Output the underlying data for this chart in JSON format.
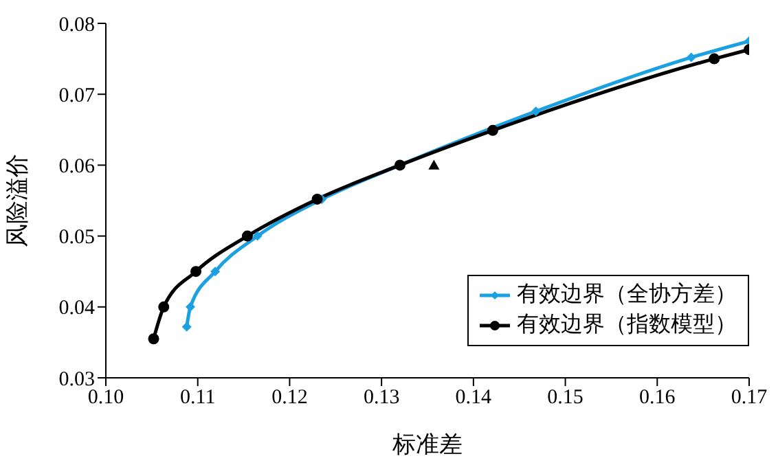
{
  "chart_data": {
    "type": "line",
    "xlabel": "标准差",
    "ylabel": "风险溢价",
    "xlim": [
      0.1,
      0.17
    ],
    "xticks": [
      {
        "value": 0.1,
        "label": "0.10"
      },
      0.11,
      0.12,
      0.13,
      0.14,
      0.15,
      0.16,
      0.17
    ],
    "ylim": [
      0.03,
      0.08
    ],
    "yticks": [
      0.03,
      0.04,
      0.05,
      0.06,
      0.07,
      0.08
    ],
    "grid": false,
    "legend": "bottom right",
    "series": [
      {
        "name": "有效边界（全协方差）",
        "color": "#1ba1e2",
        "marker": "diamond",
        "x": [
          0.1088,
          0.1092,
          0.1119,
          0.1165,
          0.1235,
          0.132,
          0.1468,
          0.1637,
          0.17
        ],
        "values": [
          0.0372,
          0.04,
          0.045,
          0.05,
          0.0552,
          0.06,
          0.0676,
          0.0752,
          0.0775
        ]
      },
      {
        "name": "有效边界（指数模型）",
        "color": "#000000",
        "marker": "circle",
        "x": [
          0.1052,
          0.1063,
          0.1098,
          0.1154,
          0.123,
          0.132,
          0.1421,
          0.1662,
          0.17
        ],
        "values": [
          0.0355,
          0.04,
          0.045,
          0.05,
          0.0552,
          0.06,
          0.0649,
          0.075,
          0.0763
        ]
      },
      {
        "type": "scatter",
        "color": "#000000",
        "marker": "triangle",
        "x": [
          0.1357
        ],
        "values": [
          0.06
        ]
      }
    ]
  }
}
